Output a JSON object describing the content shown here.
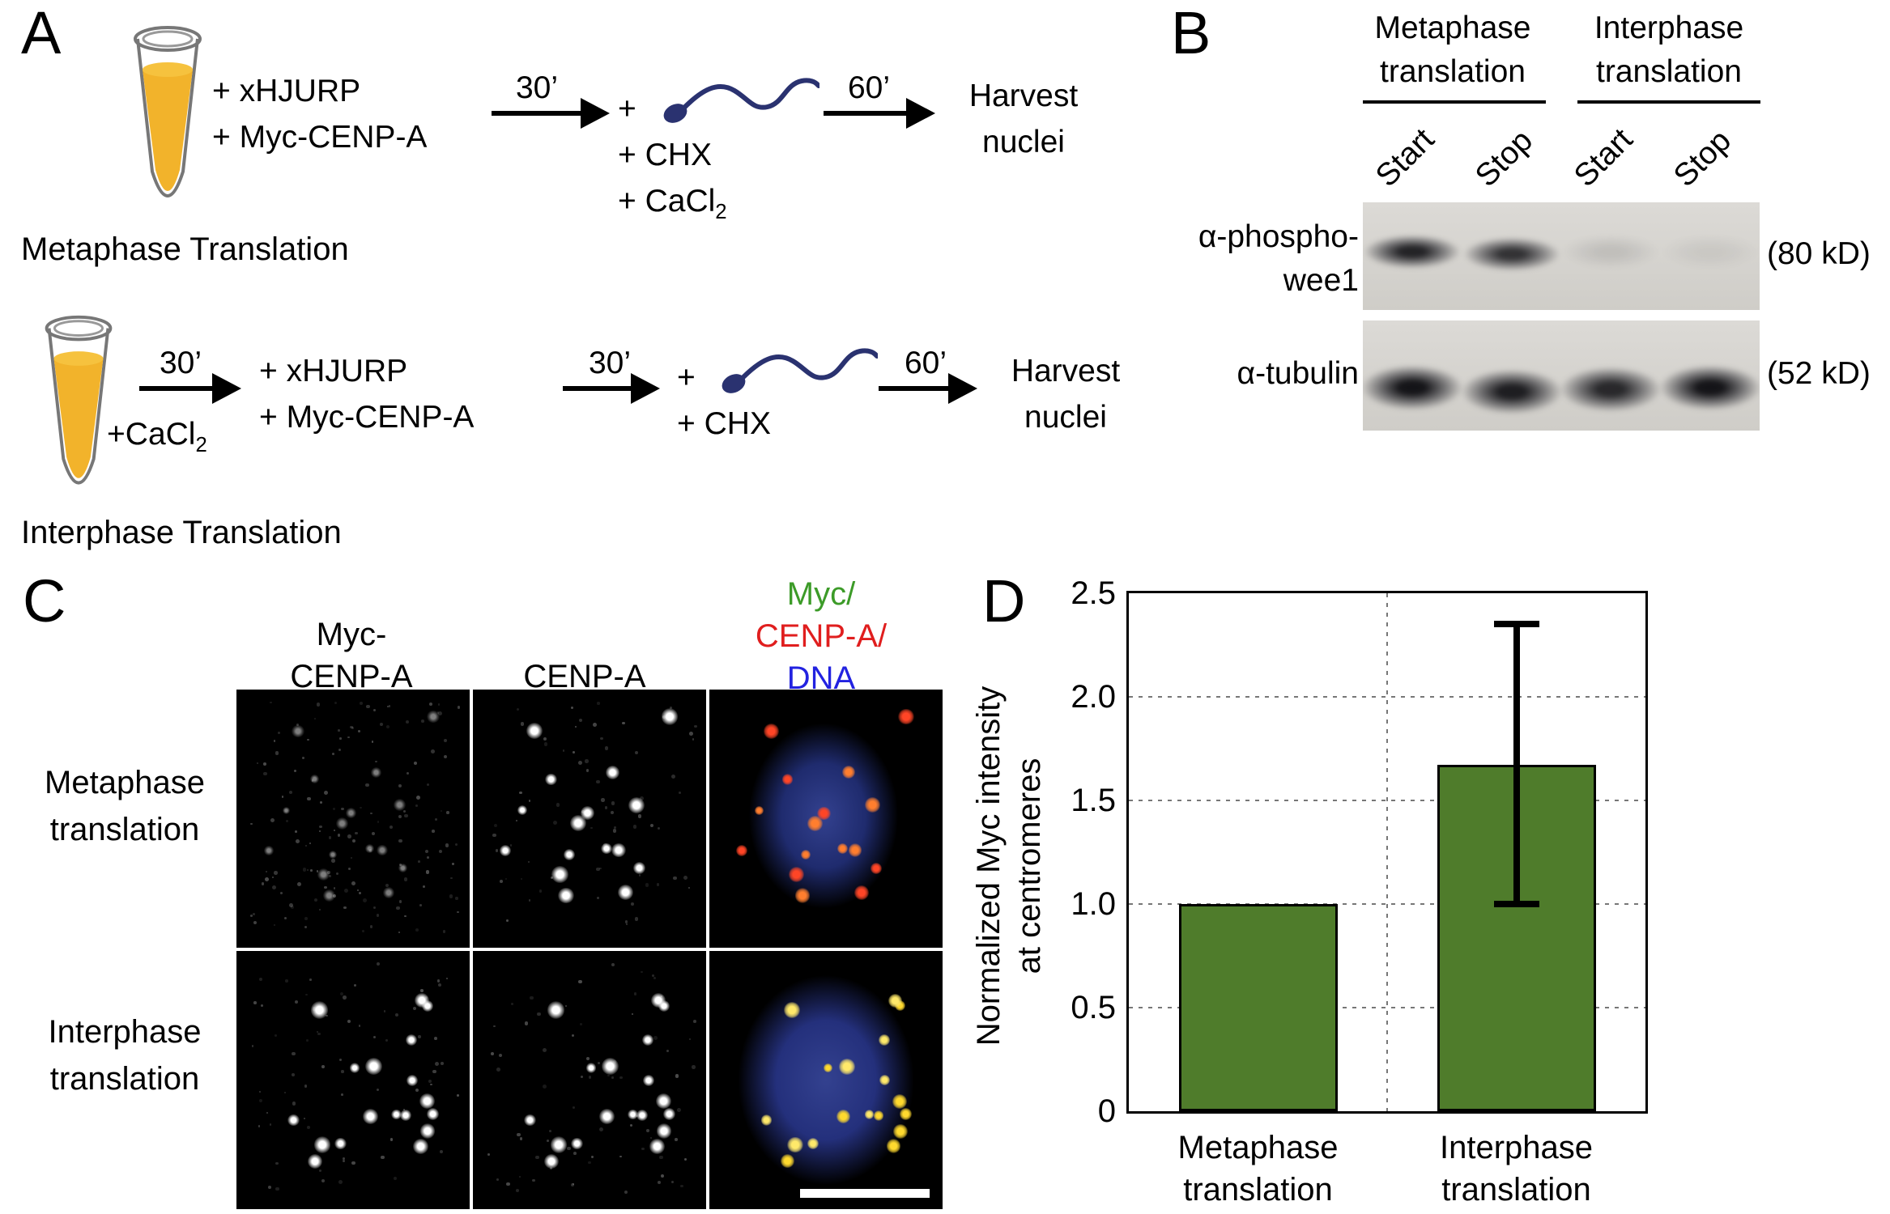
{
  "panelA": {
    "label": "A",
    "metaphase": {
      "reagent1": "+ xHJURP",
      "reagent2": "+ Myc-CENP-A",
      "time1": "30’",
      "sperm_plus": "+",
      "chx": "+ CHX",
      "cacl_pre": "+ CaCl",
      "cacl_sub": "2",
      "time2": "60’",
      "harvest_line1": "Harvest",
      "harvest_line2": "nuclei",
      "caption": "Metaphase Translation"
    },
    "interphase": {
      "time0": "30’",
      "cacl_pre": "+CaCl",
      "cacl_sub": "2",
      "reagent1": "+ xHJURP",
      "reagent2": "+ Myc-CENP-A",
      "time1": "30’",
      "sperm_plus": "+",
      "chx": "+ CHX",
      "time2": "60’",
      "harvest_line1": "Harvest",
      "harvest_line2": "nuclei",
      "caption": "Interphase Translation"
    }
  },
  "panelB": {
    "label": "B",
    "group1_line1": "Metaphase",
    "group1_line2": "translation",
    "group2_line1": "Interphase",
    "group2_line2": "translation",
    "lanes": [
      "Start",
      "Stop",
      "Start",
      "Stop"
    ],
    "blot1_label_line1": "α-phospho-",
    "blot1_label_line2": "wee1",
    "blot1_kd": "(80 kD)",
    "blot2_label": "α-tubulin",
    "blot2_kd": "(52 kD)",
    "blot1_bands": [
      {
        "lane": 0,
        "i": 0.88,
        "dy": 0
      },
      {
        "lane": 1,
        "i": 0.8,
        "dy": 3
      },
      {
        "lane": 2,
        "i": 0.1,
        "dy": 0
      },
      {
        "lane": 3,
        "i": 0.06,
        "dy": 0
      }
    ],
    "blot2_bands": [
      {
        "lane": 0,
        "i": 0.95,
        "dy": 0
      },
      {
        "lane": 1,
        "i": 0.9,
        "dy": 5
      },
      {
        "lane": 2,
        "i": 0.85,
        "dy": 2
      },
      {
        "lane": 3,
        "i": 0.95,
        "dy": 0
      }
    ]
  },
  "panelC": {
    "label": "C",
    "col1_line1": "Myc-",
    "col1_line2": "CENP-A",
    "col2": "CENP-A",
    "merge_header": [
      {
        "text": "Myc/",
        "color": "#3c9b28"
      },
      {
        "text": "CENP-A/",
        "color": "#e01e1e"
      },
      {
        "text": "DNA",
        "color": "#2222e0"
      }
    ],
    "row1_line1": "Metaphase",
    "row1_line2": "translation",
    "row2_line1": "Interphase",
    "row2_line2": "translation",
    "foci_per_row": [
      16,
      18
    ],
    "cells": [
      {
        "row": 0,
        "col": 0,
        "style": "dim"
      },
      {
        "row": 0,
        "col": 1,
        "style": "bright"
      },
      {
        "row": 0,
        "col": 2,
        "style": "merge",
        "dot_colors": [
          "#ff4526",
          "#ff7e2e"
        ],
        "nucleus": "#1f2b6e",
        "nucleus_box": [
          16,
          12,
          66,
          74
        ]
      },
      {
        "row": 1,
        "col": 0,
        "style": "bright"
      },
      {
        "row": 1,
        "col": 1,
        "style": "bright"
      },
      {
        "row": 1,
        "col": 2,
        "style": "merge",
        "dot_colors": [
          "#ffd92e",
          "#ffe96a"
        ],
        "nucleus": "#24307c",
        "nucleus_box": [
          11,
          8,
          78,
          84
        ]
      }
    ]
  },
  "chart_data": {
    "type": "bar",
    "panel_label": "D",
    "categories": [
      [
        "Metaphase",
        "translation"
      ],
      [
        "Interphase",
        "translation"
      ]
    ],
    "values": [
      1.0,
      1.67
    ],
    "errors": [
      null,
      {
        "low": 1.0,
        "high": 2.35
      }
    ],
    "ylabel_line1": "Normalized Myc intensity",
    "ylabel_line2": "at centromeres",
    "ylim": [
      0,
      2.5
    ],
    "yticks": [
      "0",
      "0.5",
      "1.0",
      "1.5",
      "2.0",
      "2.5"
    ],
    "bar_color": "#4f7c2b",
    "bar_edge": "#000000",
    "grid": "dashed",
    "legend": "none"
  }
}
